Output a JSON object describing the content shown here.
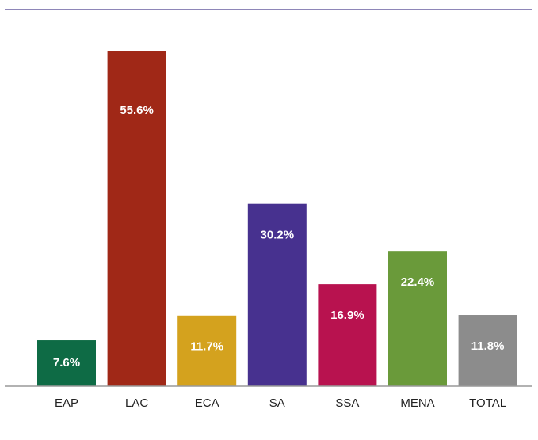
{
  "chart_data": {
    "type": "bar",
    "categories": [
      "EAP",
      "LAC",
      "ECA",
      "SA",
      "SSA",
      "MENA",
      "TOTAL"
    ],
    "values": [
      7.6,
      55.6,
      11.7,
      30.2,
      16.9,
      22.4,
      11.8
    ],
    "value_labels": [
      "7.6%",
      "55.6%",
      "11.7%",
      "30.2%",
      "16.9%",
      "22.4%",
      "11.8%"
    ],
    "colors": [
      "#0e6b45",
      "#a02817",
      "#d4a21e",
      "#47318f",
      "#b8124f",
      "#6a9a3a",
      "#8c8c8c"
    ]
  }
}
